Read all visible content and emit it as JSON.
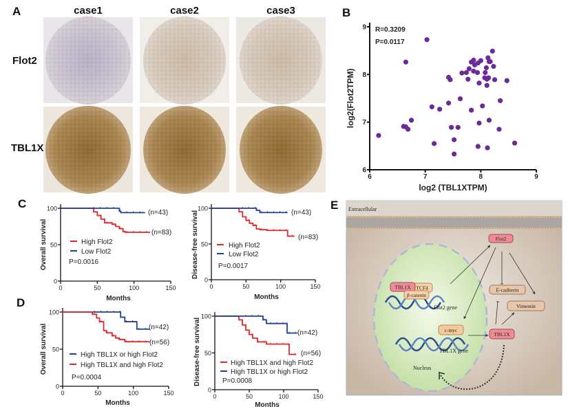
{
  "panels": {
    "a": "A",
    "b": "B",
    "c": "C",
    "d": "D",
    "e": "E"
  },
  "panel_a": {
    "columns": [
      "case1",
      "case2",
      "case3"
    ],
    "rows": [
      "Flot2",
      "TBL1X"
    ]
  },
  "chart_data": [
    {
      "id": "B",
      "type": "scatter",
      "xlabel": "log2 (TBL1XTPM)",
      "ylabel": "log2(Flot2TPM)",
      "xlim": [
        6,
        9
      ],
      "ylim": [
        6,
        9
      ],
      "xticks": [
        6,
        7,
        8,
        9
      ],
      "yticks": [
        6,
        7,
        8,
        9
      ],
      "annotations": [
        "R=0.3209",
        "P=0.0117"
      ],
      "color": "#6a2a9a",
      "points": [
        [
          7.03,
          8.73
        ],
        [
          6.65,
          8.26
        ],
        [
          6.16,
          6.72
        ],
        [
          6.61,
          6.91
        ],
        [
          6.65,
          6.9
        ],
        [
          6.69,
          6.85
        ],
        [
          6.75,
          7.04
        ],
        [
          7.12,
          7.32
        ],
        [
          7.26,
          7.27
        ],
        [
          7.16,
          6.55
        ],
        [
          7.42,
          7.94
        ],
        [
          7.45,
          7.89
        ],
        [
          7.42,
          7.4
        ],
        [
          7.47,
          6.89
        ],
        [
          7.59,
          6.89
        ],
        [
          7.52,
          6.63
        ],
        [
          7.52,
          6.33
        ],
        [
          7.63,
          7.49
        ],
        [
          7.66,
          8.03
        ],
        [
          7.74,
          8.04
        ],
        [
          7.77,
          7.9
        ],
        [
          7.79,
          8.12
        ],
        [
          7.83,
          8.26
        ],
        [
          7.87,
          8.3
        ],
        [
          7.89,
          8.2
        ],
        [
          7.87,
          8.07
        ],
        [
          7.94,
          8.04
        ],
        [
          7.95,
          8.24
        ],
        [
          8.0,
          8.29
        ],
        [
          7.97,
          7.82
        ],
        [
          7.83,
          7.25
        ],
        [
          8.03,
          7.34
        ],
        [
          7.97,
          6.98
        ],
        [
          7.95,
          6.49
        ],
        [
          8.12,
          6.46
        ],
        [
          8.15,
          7.04
        ],
        [
          8.1,
          8.14
        ],
        [
          8.08,
          8.04
        ],
        [
          8.07,
          7.93
        ],
        [
          8.11,
          7.9
        ],
        [
          8.14,
          7.93
        ],
        [
          8.11,
          7.77
        ],
        [
          8.13,
          8.35
        ],
        [
          8.15,
          8.27
        ],
        [
          8.21,
          8.49
        ],
        [
          8.23,
          8.17
        ],
        [
          8.25,
          7.89
        ],
        [
          8.47,
          7.87
        ],
        [
          8.35,
          7.45
        ],
        [
          8.33,
          6.85
        ],
        [
          8.61,
          6.56
        ],
        [
          8.17,
          8.27
        ]
      ]
    },
    {
      "id": "C-left",
      "type": "line",
      "step": true,
      "xlabel": "Months",
      "ylabel": "Overall survival",
      "xlim": [
        0,
        150
      ],
      "ylim": [
        0,
        100
      ],
      "xticks": [
        0,
        50,
        100,
        150
      ],
      "yticks": [
        0,
        50,
        100
      ],
      "pvalue": "P=0.0016",
      "series": [
        {
          "name": "High Flot2",
          "color": "#e3262b",
          "n": "(n=83)",
          "points": [
            [
              0,
              100
            ],
            [
              38,
              100
            ],
            [
              45,
              95
            ],
            [
              50,
              90
            ],
            [
              55,
              85
            ],
            [
              60,
              80
            ],
            [
              70,
              78
            ],
            [
              75,
              75
            ],
            [
              80,
              72
            ],
            [
              85,
              68
            ],
            [
              88,
              67
            ],
            [
              122,
              67
            ]
          ]
        },
        {
          "name": "Low Flot2",
          "color": "#1f3f99",
          "n": "(n=43)",
          "points": [
            [
              0,
              100
            ],
            [
              75,
              100
            ],
            [
              80,
              96
            ],
            [
              82,
              94
            ],
            [
              115,
              94
            ]
          ]
        }
      ]
    },
    {
      "id": "C-right",
      "type": "line",
      "step": true,
      "xlabel": "Months",
      "ylabel": "Disease-free survival",
      "xlim": [
        0,
        150
      ],
      "ylim": [
        0,
        100
      ],
      "xticks": [
        0,
        50,
        100,
        150
      ],
      "yticks": [
        0,
        50,
        100
      ],
      "pvalue": "P=0.0017",
      "series": [
        {
          "name": "High Flot2",
          "color": "#e3262b",
          "n": "(n=83)",
          "points": [
            [
              0,
              100
            ],
            [
              35,
              100
            ],
            [
              40,
              95
            ],
            [
              45,
              88
            ],
            [
              50,
              83
            ],
            [
              55,
              79
            ],
            [
              60,
              76
            ],
            [
              65,
              71
            ],
            [
              70,
              70
            ],
            [
              80,
              69
            ],
            [
              110,
              69
            ],
            [
              110,
              61
            ],
            [
              120,
              61
            ]
          ]
        },
        {
          "name": "Low Flot2",
          "color": "#1f3f99",
          "n": "(n=43)",
          "points": [
            [
              0,
              100
            ],
            [
              60,
              100
            ],
            [
              65,
              97
            ],
            [
              70,
              94
            ],
            [
              110,
              94
            ]
          ]
        }
      ]
    },
    {
      "id": "D-left",
      "type": "line",
      "step": true,
      "xlabel": "Months",
      "ylabel": "Overall survival",
      "xlim": [
        0,
        150
      ],
      "ylim": [
        0,
        100
      ],
      "xticks": [
        0,
        50,
        100,
        150
      ],
      "yticks": [
        0,
        50,
        100
      ],
      "pvalue": "P=0.0004",
      "series": [
        {
          "name": "High TBL1X or high Flot2",
          "color": "#1f3f99",
          "n": "(n=42)",
          "points": [
            [
              0,
              100
            ],
            [
              80,
              100
            ],
            [
              82,
              93
            ],
            [
              88,
              87
            ],
            [
              105,
              87
            ],
            [
              105,
              77
            ],
            [
              123,
              77
            ]
          ]
        },
        {
          "name": "High TBL1X and high Flot2",
          "color": "#e3262b",
          "n": "(n=56)",
          "points": [
            [
              0,
              100
            ],
            [
              38,
              100
            ],
            [
              42,
              97
            ],
            [
              48,
              92
            ],
            [
              52,
              87
            ],
            [
              58,
              75
            ],
            [
              62,
              72
            ],
            [
              70,
              68
            ],
            [
              75,
              65
            ],
            [
              80,
              63
            ],
            [
              88,
              60
            ],
            [
              123,
              60
            ]
          ]
        }
      ]
    },
    {
      "id": "D-right",
      "type": "line",
      "step": true,
      "xlabel": "Months",
      "ylabel": "Disease-free survival",
      "xlim": [
        0,
        150
      ],
      "ylim": [
        0,
        100
      ],
      "xticks": [
        0,
        50,
        100,
        150
      ],
      "yticks": [
        0,
        50,
        100
      ],
      "pvalue": "P=0.0008",
      "series": [
        {
          "name": "High TBL1X and high Flot2",
          "color": "#e3262b",
          "n": "(n=56)",
          "points": [
            [
              0,
              100
            ],
            [
              30,
              100
            ],
            [
              35,
              95
            ],
            [
              40,
              88
            ],
            [
              45,
              81
            ],
            [
              50,
              75
            ],
            [
              55,
              70
            ],
            [
              62,
              65
            ],
            [
              75,
              62
            ],
            [
              108,
              62
            ],
            [
              108,
              48
            ],
            [
              118,
              48
            ]
          ]
        },
        {
          "name": "High TBL1X or high Flot2",
          "color": "#1f3f99",
          "n": "(n=42)",
          "points": [
            [
              0,
              100
            ],
            [
              65,
              100
            ],
            [
              70,
              95
            ],
            [
              75,
              90
            ],
            [
              105,
              90
            ],
            [
              105,
              77
            ],
            [
              120,
              77
            ]
          ]
        }
      ]
    }
  ],
  "diagram": {
    "extracellular": "Extracellular",
    "flot2": "Flot2",
    "e_cadherin": "E-cadherin",
    "vimentin": "Vimentin",
    "tbl1x_cyto": "TBL1X",
    "tbl1x_nuc": "TBL1X",
    "tcf4": "TCF4",
    "beta_catenin": "β-catenin",
    "flot2_gene": "Flot2 gene",
    "c_myc": "c-myc",
    "tbl1x_gene": "TBL1X gene",
    "nucleus": "Nucleus"
  }
}
